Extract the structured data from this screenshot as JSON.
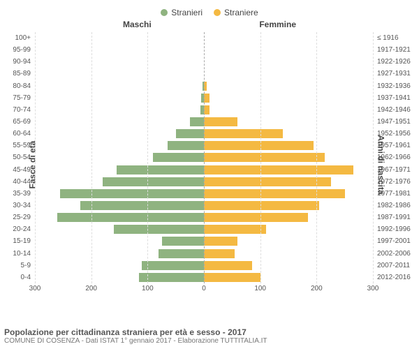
{
  "chart": {
    "type": "population-pyramid",
    "legend": {
      "male": {
        "label": "Stranieri",
        "color": "#8fb380"
      },
      "female": {
        "label": "Straniere",
        "color": "#f4b942"
      }
    },
    "column_headers": {
      "left": "Maschi",
      "right": "Femmine"
    },
    "y_axis_left_title": "Fasce di età",
    "y_axis_right_title": "Anni di nascita",
    "xlim": 300,
    "xticks": [
      0,
      100,
      200,
      300
    ],
    "grid_color": "#dddddd",
    "centerline_color": "#aaaaaa",
    "background_color": "#ffffff",
    "text_color": "#555555",
    "label_fontsize": 10,
    "title_fontsize": 12,
    "rows": [
      {
        "age": "100+",
        "birth": "≤ 1916",
        "male": 0,
        "female": 0
      },
      {
        "age": "95-99",
        "birth": "1917-1921",
        "male": 0,
        "female": 0
      },
      {
        "age": "90-94",
        "birth": "1922-1926",
        "male": 0,
        "female": 0
      },
      {
        "age": "85-89",
        "birth": "1927-1931",
        "male": 0,
        "female": 0
      },
      {
        "age": "80-84",
        "birth": "1932-1936",
        "male": 3,
        "female": 5
      },
      {
        "age": "75-79",
        "birth": "1937-1941",
        "male": 5,
        "female": 10
      },
      {
        "age": "70-74",
        "birth": "1942-1946",
        "male": 6,
        "female": 10
      },
      {
        "age": "65-69",
        "birth": "1947-1951",
        "male": 25,
        "female": 60
      },
      {
        "age": "60-64",
        "birth": "1952-1956",
        "male": 50,
        "female": 140
      },
      {
        "age": "55-59",
        "birth": "1957-1961",
        "male": 65,
        "female": 195
      },
      {
        "age": "50-54",
        "birth": "1962-1966",
        "male": 90,
        "female": 215
      },
      {
        "age": "45-49",
        "birth": "1967-1971",
        "male": 155,
        "female": 265
      },
      {
        "age": "40-44",
        "birth": "1972-1976",
        "male": 180,
        "female": 225
      },
      {
        "age": "35-39",
        "birth": "1977-1981",
        "male": 255,
        "female": 250
      },
      {
        "age": "30-34",
        "birth": "1982-1986",
        "male": 220,
        "female": 205
      },
      {
        "age": "25-29",
        "birth": "1987-1991",
        "male": 260,
        "female": 185
      },
      {
        "age": "20-24",
        "birth": "1992-1996",
        "male": 160,
        "female": 110
      },
      {
        "age": "15-19",
        "birth": "1997-2001",
        "male": 75,
        "female": 60
      },
      {
        "age": "10-14",
        "birth": "2002-2006",
        "male": 80,
        "female": 55
      },
      {
        "age": "5-9",
        "birth": "2007-2011",
        "male": 110,
        "female": 85
      },
      {
        "age": "0-4",
        "birth": "2012-2016",
        "male": 115,
        "female": 100
      }
    ]
  },
  "footer": {
    "title": "Popolazione per cittadinanza straniera per età e sesso - 2017",
    "subtitle": "COMUNE DI COSENZA - Dati ISTAT 1° gennaio 2017 - Elaborazione TUTTITALIA.IT"
  }
}
